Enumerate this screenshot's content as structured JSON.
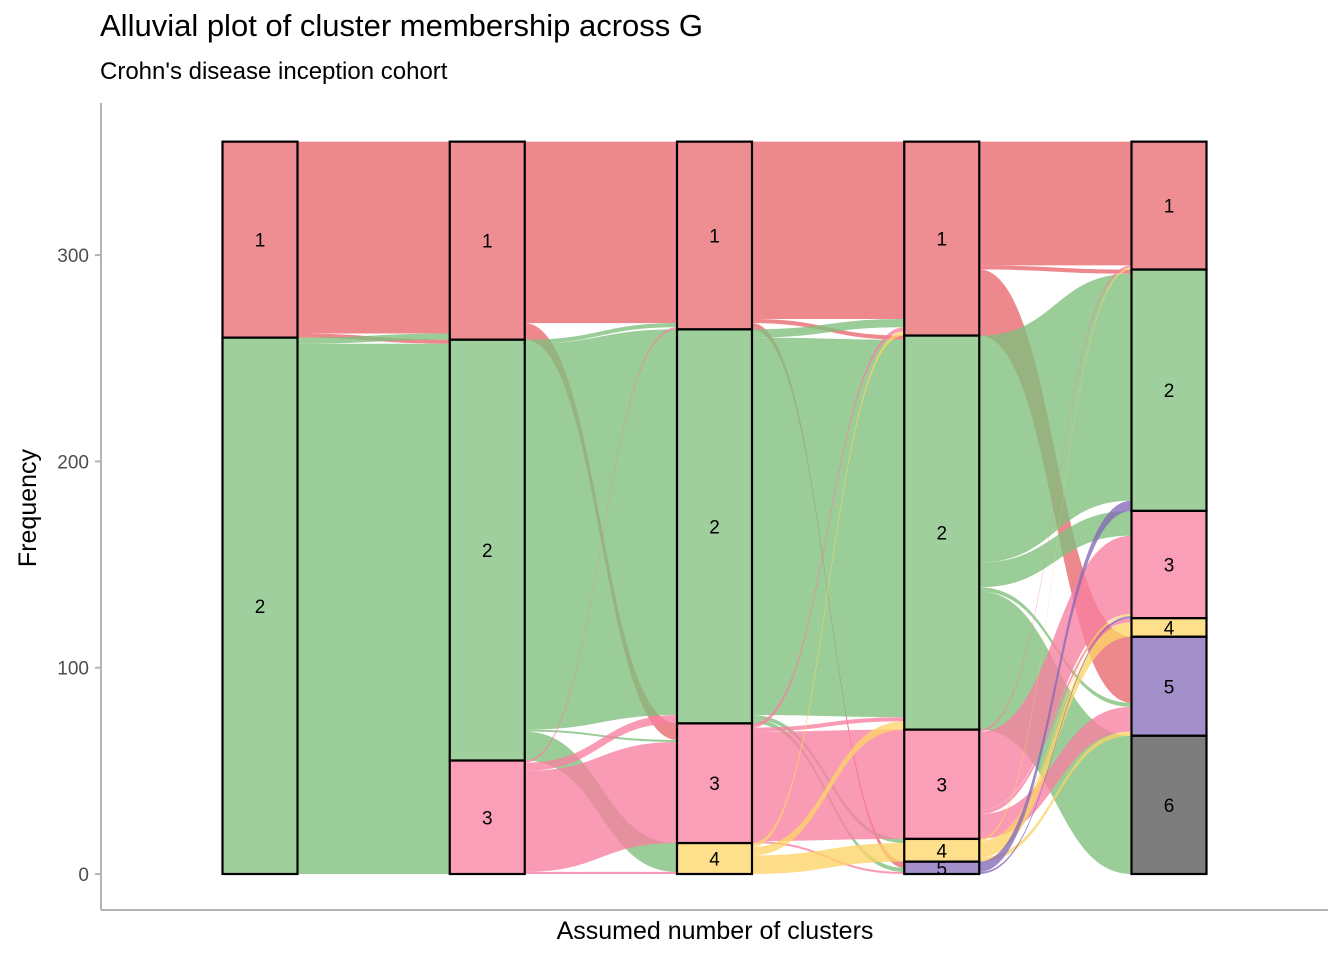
{
  "chart_data": {
    "type": "alluvial",
    "title": "Alluvial plot of cluster membership across G",
    "subtitle": "Crohn's disease inception cohort",
    "xlabel": "Assumed number of clusters",
    "ylabel": "Frequency",
    "ylim": [
      -16,
      372
    ],
    "yticks": [
      0,
      100,
      200,
      300
    ],
    "axes": 5,
    "colors": {
      "1": "#e8676d",
      "2": "#7fbf7b",
      "3": "#f97fa0",
      "4": "#fdd466",
      "5": "#8469b8",
      "6": "#666666"
    },
    "stratum_stroke": "#000000",
    "axis_color": "#b3b3b3",
    "strata": [
      [
        {
          "cluster": "1",
          "label": "1",
          "size": 95
        },
        {
          "cluster": "2",
          "label": "2",
          "size": 260
        }
      ],
      [
        {
          "cluster": "1",
          "label": "1",
          "size": 96
        },
        {
          "cluster": "2",
          "label": "2",
          "size": 204
        },
        {
          "cluster": "3",
          "label": "3",
          "size": 55
        }
      ],
      [
        {
          "cluster": "1",
          "label": "1",
          "size": 91
        },
        {
          "cluster": "2",
          "label": "2",
          "size": 191
        },
        {
          "cluster": "3",
          "label": "3",
          "size": 58
        },
        {
          "cluster": "4",
          "label": "4",
          "size": 15
        }
      ],
      [
        {
          "cluster": "1",
          "label": "1",
          "size": 94
        },
        {
          "cluster": "2",
          "label": "2",
          "size": 191
        },
        {
          "cluster": "3",
          "label": "3",
          "size": 53
        },
        {
          "cluster": "4",
          "label": "4",
          "size": 11
        },
        {
          "cluster": "5",
          "label": "5",
          "size": 6
        }
      ],
      [
        {
          "cluster": "1",
          "label": "1",
          "size": 62
        },
        {
          "cluster": "2",
          "label": "2",
          "size": 117
        },
        {
          "cluster": "3",
          "label": "3",
          "size": 52
        },
        {
          "cluster": "4",
          "label": "4",
          "size": 9
        },
        {
          "cluster": "5",
          "label": "5",
          "size": 48
        },
        {
          "cluster": "6",
          "label": "6",
          "size": 67
        }
      ]
    ],
    "flows": [
      [
        {
          "from": "1",
          "to": "1",
          "value": 93
        },
        {
          "from": "1",
          "to": "2",
          "value": 2
        },
        {
          "from": "2",
          "to": "1",
          "value": 3
        },
        {
          "from": "2",
          "to": "2",
          "value": 202
        },
        {
          "from": "2",
          "to": "3",
          "value": 55
        }
      ],
      [
        {
          "from": "1",
          "to": "1",
          "value": 88
        },
        {
          "from": "1",
          "to": "3",
          "value": 8
        },
        {
          "from": "2",
          "to": "1",
          "value": 2
        },
        {
          "from": "2",
          "to": "2",
          "value": 187
        },
        {
          "from": "2",
          "to": "3",
          "value": 1
        },
        {
          "from": "2",
          "to": "4",
          "value": 14
        },
        {
          "from": "3",
          "to": "1",
          "value": 1
        },
        {
          "from": "3",
          "to": "2",
          "value": 4
        },
        {
          "from": "3",
          "to": "3",
          "value": 49
        },
        {
          "from": "3",
          "to": "4",
          "value": 1
        }
      ],
      [
        {
          "from": "1",
          "to": "1",
          "value": 86
        },
        {
          "from": "1",
          "to": "2",
          "value": 2
        },
        {
          "from": "1",
          "to": "5",
          "value": 3
        },
        {
          "from": "2",
          "to": "1",
          "value": 4
        },
        {
          "from": "2",
          "to": "2",
          "value": 183
        },
        {
          "from": "2",
          "to": "4",
          "value": 2
        },
        {
          "from": "2",
          "to": "5",
          "value": 2
        },
        {
          "from": "3",
          "to": "1",
          "value": 2
        },
        {
          "from": "3",
          "to": "2",
          "value": 2
        },
        {
          "from": "3",
          "to": "3",
          "value": 53
        },
        {
          "from": "3",
          "to": "5",
          "value": 1
        },
        {
          "from": "4",
          "to": "1",
          "value": 2
        },
        {
          "from": "4",
          "to": "2",
          "value": 4
        },
        {
          "from": "4",
          "to": "4",
          "value": 9
        }
      ],
      [
        {
          "from": "1",
          "to": "1",
          "value": 60
        },
        {
          "from": "1",
          "to": "2",
          "value": 2
        },
        {
          "from": "1",
          "to": "5",
          "value": 32
        },
        {
          "from": "2",
          "to": "2",
          "value": 110
        },
        {
          "from": "2",
          "to": "3",
          "value": 12
        },
        {
          "from": "2",
          "to": "5",
          "value": 2
        },
        {
          "from": "2",
          "to": "6",
          "value": 67
        },
        {
          "from": "3",
          "to": "1",
          "value": 1
        },
        {
          "from": "3",
          "to": "3",
          "value": 38
        },
        {
          "from": "3",
          "to": "4",
          "value": 2
        },
        {
          "from": "3",
          "to": "5",
          "value": 12
        },
        {
          "from": "4",
          "to": "1",
          "value": 1
        },
        {
          "from": "4",
          "to": "3",
          "value": 1
        },
        {
          "from": "4",
          "to": "4",
          "value": 7
        },
        {
          "from": "4",
          "to": "5",
          "value": 2
        },
        {
          "from": "5",
          "to": "2",
          "value": 5
        },
        {
          "from": "5",
          "to": "3",
          "value": 1
        }
      ]
    ]
  }
}
